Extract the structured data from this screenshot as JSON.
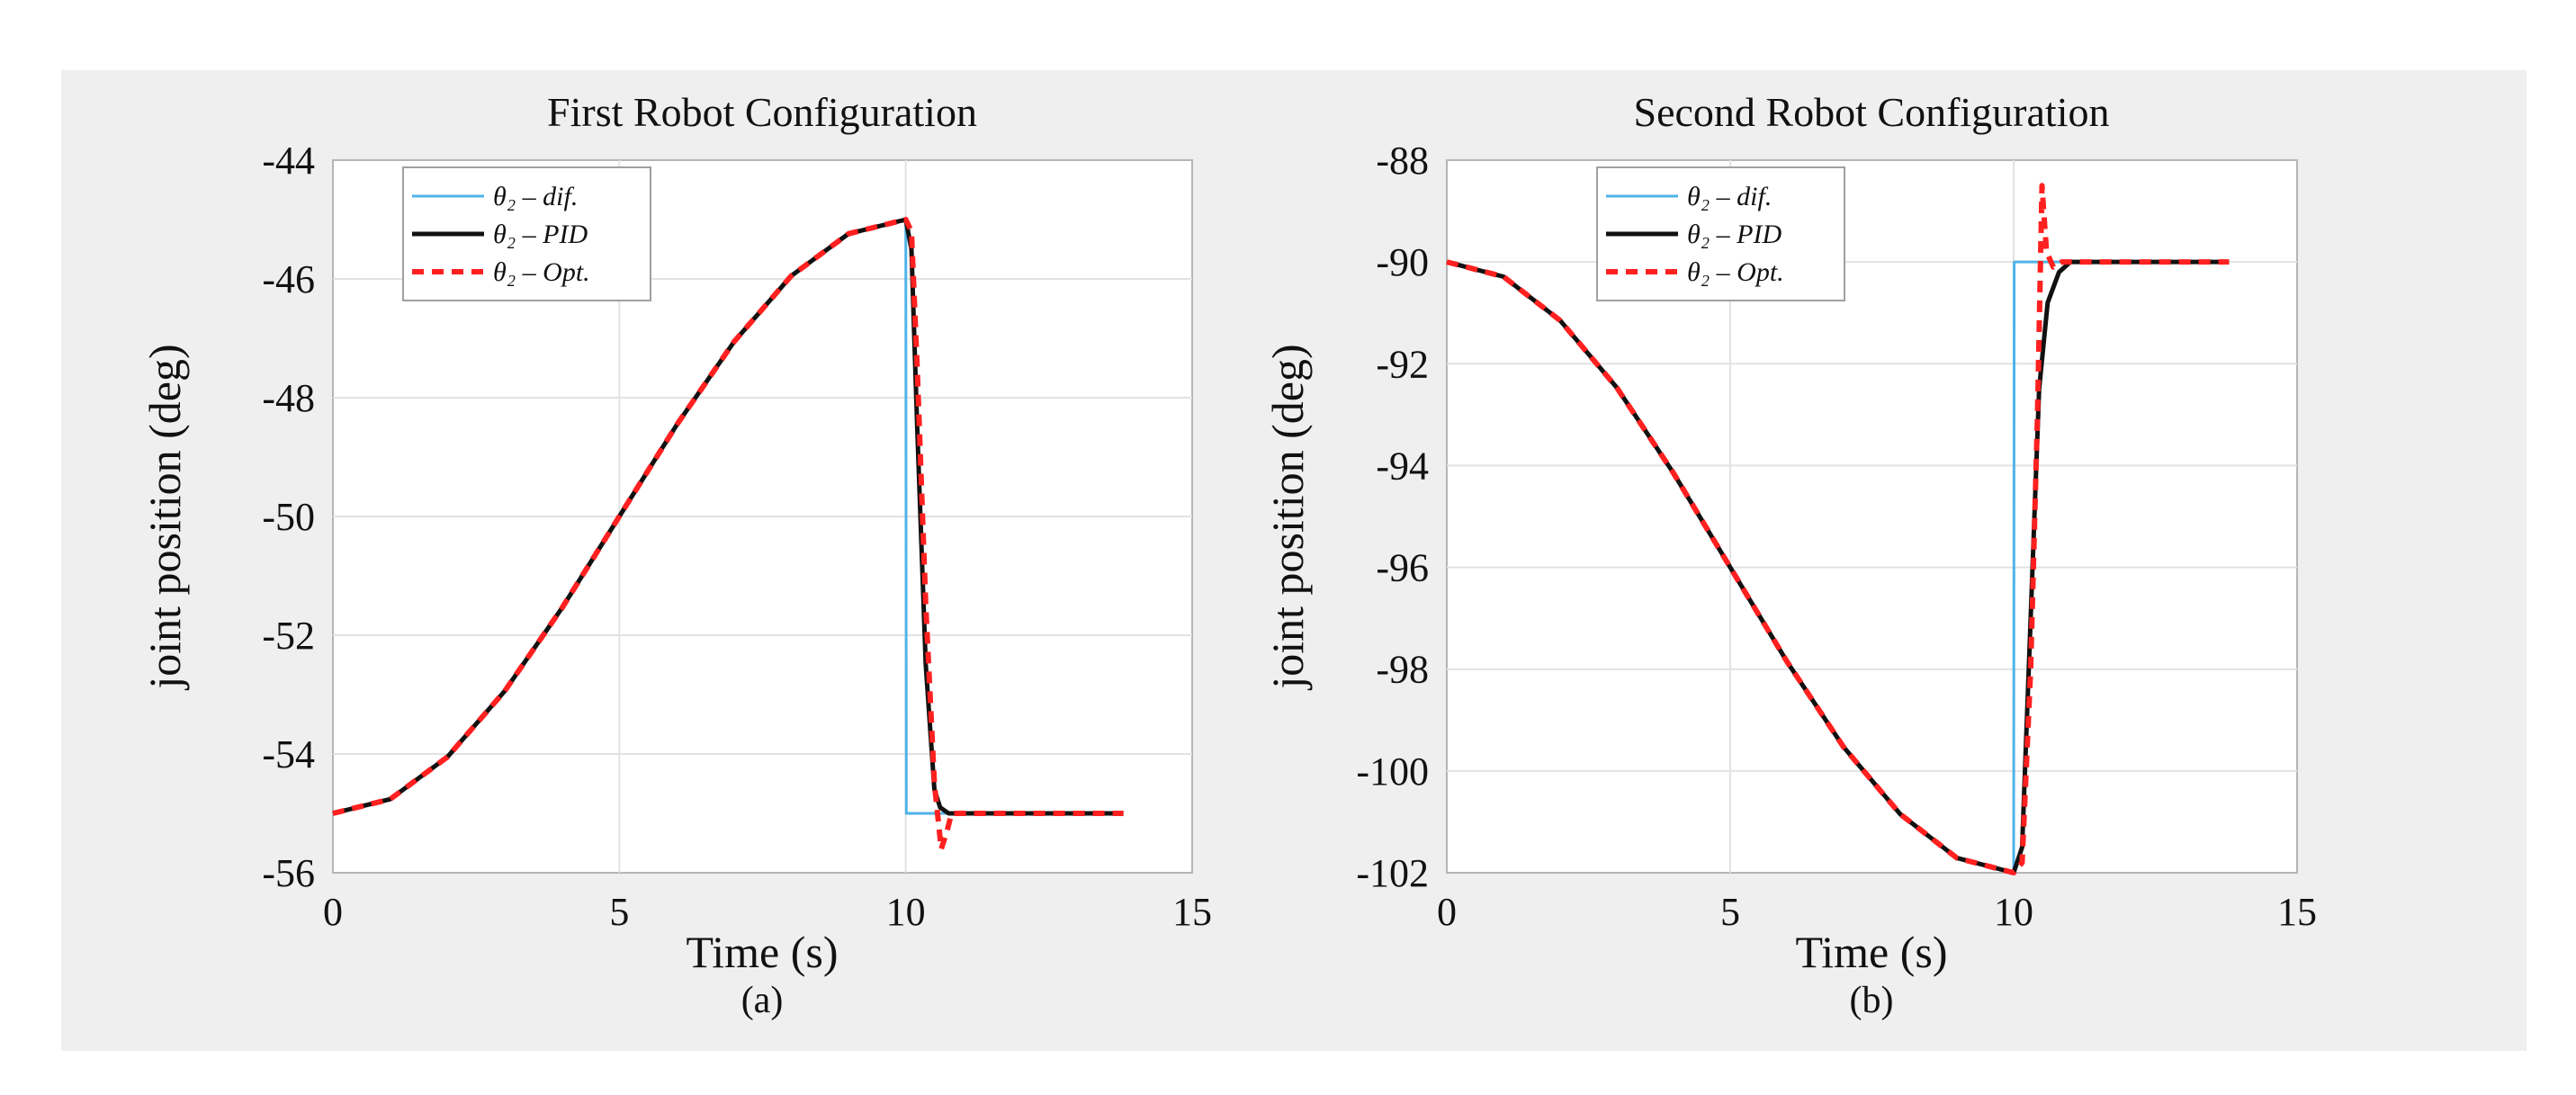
{
  "chart_data": [
    {
      "type": "line",
      "title": "First Robot Configuration",
      "xlabel": "Time (s)",
      "ylabel": "joint position (deg)",
      "sublabel": "(a)",
      "xlim": [
        0,
        15
      ],
      "ylim": [
        -56,
        -44
      ],
      "xticks": [
        0,
        5,
        10,
        15
      ],
      "yticks": [
        -56,
        -54,
        -52,
        -50,
        -48,
        -46,
        -44
      ],
      "grid": true,
      "legend_position": "top-left",
      "series": [
        {
          "name": "θ₂ – dif.",
          "color": "#4fb3e8",
          "style": "solid",
          "x": [
            0,
            1,
            2,
            3,
            4,
            5,
            6,
            7,
            8,
            9,
            10,
            10.01,
            10.05,
            11,
            12,
            13,
            13.8
          ],
          "y": [
            -55,
            -54.76,
            -54.05,
            -52.94,
            -51.54,
            -50,
            -48.46,
            -47.06,
            -45.95,
            -45.24,
            -45,
            -55,
            -55,
            -55,
            -55,
            -55,
            -55
          ]
        },
        {
          "name": "θ₂ – PID",
          "color": "#111111",
          "style": "solid",
          "x": [
            0,
            1,
            2,
            3,
            4,
            5,
            6,
            7,
            8,
            9,
            10,
            10.1,
            10.2,
            10.35,
            10.5,
            10.6,
            10.75,
            11,
            12,
            13,
            13.8
          ],
          "y": [
            -55,
            -54.76,
            -54.05,
            -52.94,
            -51.54,
            -50,
            -48.46,
            -47.06,
            -45.95,
            -45.24,
            -45,
            -45.5,
            -48.5,
            -52.5,
            -54.6,
            -54.9,
            -55,
            -55,
            -55,
            -55,
            -55
          ]
        },
        {
          "name": "θ₂ – Opt.",
          "color": "#ff2020",
          "style": "dashed",
          "x": [
            0,
            1,
            2,
            3,
            4,
            5,
            6,
            7,
            8,
            9,
            10,
            10.1,
            10.2,
            10.35,
            10.5,
            10.62,
            10.72,
            10.8,
            11,
            12,
            13,
            13.8
          ],
          "y": [
            -55,
            -54.76,
            -54.05,
            -52.94,
            -51.54,
            -50,
            -48.46,
            -47.06,
            -45.95,
            -45.24,
            -45,
            -45.2,
            -47.5,
            -51.5,
            -54.5,
            -55.6,
            -55.3,
            -55,
            -55,
            -55,
            -55,
            -55
          ]
        }
      ]
    },
    {
      "type": "line",
      "title": "Second Robot Configuration",
      "xlabel": "Time (s)",
      "ylabel": "joint position (deg)",
      "sublabel": "(b)",
      "xlim": [
        0,
        15
      ],
      "ylim": [
        -102,
        -88
      ],
      "xticks": [
        0,
        5,
        10,
        15
      ],
      "yticks": [
        -102,
        -100,
        -98,
        -96,
        -94,
        -92,
        -90,
        -88
      ],
      "grid": true,
      "legend_position": "top-left",
      "series": [
        {
          "name": "θ₂ – dif.",
          "color": "#4fb3e8",
          "style": "solid",
          "x": [
            0,
            1,
            2,
            3,
            4,
            5,
            6,
            7,
            8,
            9,
            10,
            10.01,
            10.05,
            11,
            12,
            13,
            13.8
          ],
          "y": [
            -90,
            -90.29,
            -91.15,
            -92.47,
            -94.15,
            -96,
            -97.85,
            -99.53,
            -100.85,
            -101.71,
            -102,
            -90,
            -90,
            -90,
            -90,
            -90,
            -90
          ]
        },
        {
          "name": "θ₂ – PID",
          "color": "#111111",
          "style": "solid",
          "x": [
            0,
            1,
            2,
            3,
            4,
            5,
            6,
            7,
            8,
            9,
            10,
            10.15,
            10.3,
            10.45,
            10.6,
            10.8,
            11,
            12,
            13,
            13.8
          ],
          "y": [
            -90,
            -90.29,
            -91.15,
            -92.47,
            -94.15,
            -96,
            -97.85,
            -99.53,
            -100.85,
            -101.71,
            -102,
            -101.5,
            -97,
            -92.5,
            -90.8,
            -90.2,
            -90,
            -90,
            -90,
            -90
          ]
        },
        {
          "name": "θ₂ – Opt.",
          "color": "#ff2020",
          "style": "dashed",
          "x": [
            0,
            1,
            2,
            3,
            4,
            5,
            6,
            7,
            8,
            9,
            10,
            10.15,
            10.3,
            10.42,
            10.5,
            10.58,
            10.7,
            10.85,
            11,
            12,
            13,
            13.8
          ],
          "y": [
            -90,
            -90.29,
            -91.15,
            -92.47,
            -94.15,
            -96,
            -97.85,
            -99.53,
            -100.85,
            -101.71,
            -102,
            -101.8,
            -98,
            -93,
            -88.5,
            -89.8,
            -90.1,
            -90,
            -90,
            -90,
            -90,
            -90
          ]
        }
      ]
    }
  ]
}
